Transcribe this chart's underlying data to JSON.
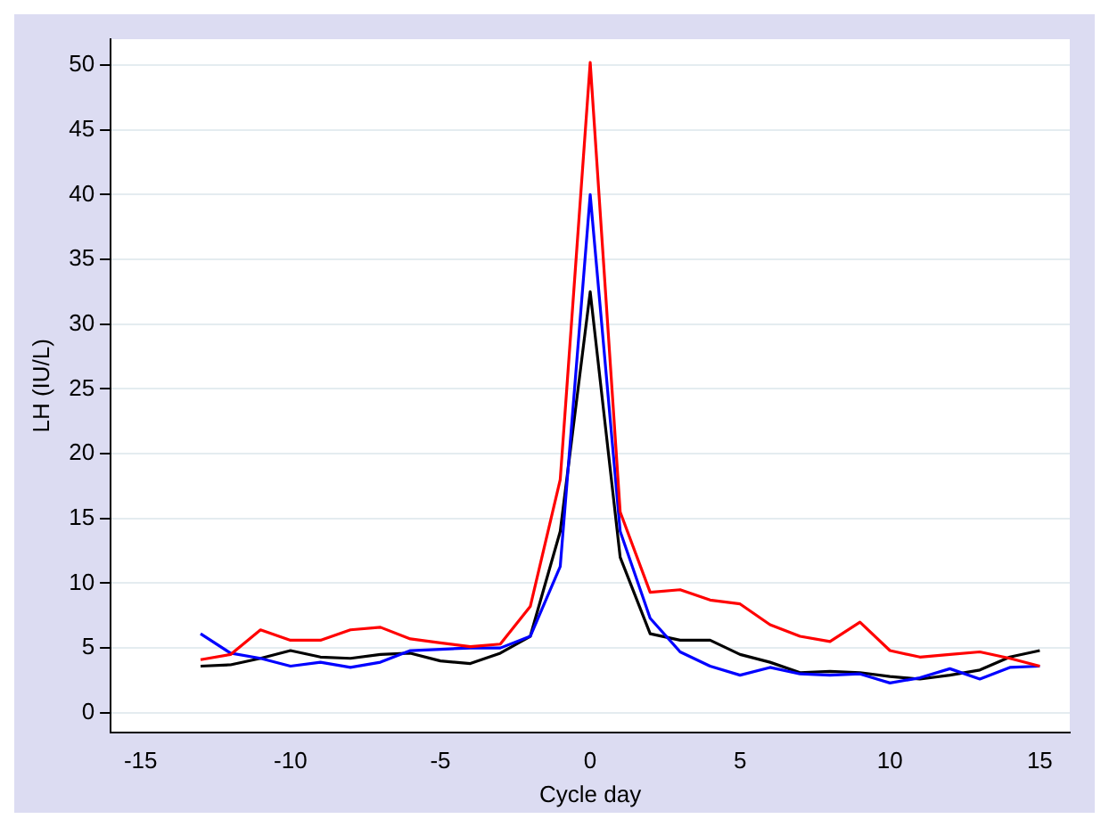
{
  "chart_data": {
    "type": "line",
    "xlabel": "Cycle day",
    "ylabel": "LH (IU/L)",
    "x": [
      -13,
      -12,
      -11,
      -10,
      -9,
      -8,
      -7,
      -6,
      -5,
      -4,
      -3,
      -2,
      -1,
      0,
      1,
      2,
      3,
      4,
      5,
      6,
      7,
      8,
      9,
      10,
      11,
      12,
      13,
      14,
      15
    ],
    "series": [
      {
        "color": "#ff0000",
        "values": [
          4.1,
          4.5,
          6.4,
          5.6,
          5.6,
          6.4,
          6.6,
          5.7,
          5.4,
          5.1,
          5.3,
          8.2,
          18,
          50.2,
          15.5,
          9.3,
          9.5,
          8.7,
          8.4,
          6.8,
          5.9,
          5.5,
          7,
          4.8,
          4.3,
          4.5,
          4.7,
          4.2,
          3.6
        ]
      },
      {
        "color": "#0000ff",
        "values": [
          6.1,
          4.6,
          4.2,
          3.6,
          3.9,
          3.5,
          3.9,
          4.8,
          4.9,
          5.0,
          5.0,
          5.9,
          11.3,
          40,
          14,
          7.3,
          4.7,
          3.6,
          2.9,
          3.5,
          3.0,
          2.9,
          3.0,
          2.3,
          2.7,
          3.4,
          2.6,
          3.5,
          3.6
        ]
      },
      {
        "color": "#000000",
        "values": [
          3.6,
          3.7,
          4.2,
          4.8,
          4.3,
          4.2,
          4.5,
          4.6,
          4.0,
          3.8,
          4.6,
          5.9,
          14,
          32.5,
          12,
          6.1,
          5.6,
          5.6,
          4.5,
          3.9,
          3.1,
          3.2,
          3.1,
          2.8,
          2.6,
          2.9,
          3.3,
          4.3,
          4.8
        ]
      }
    ],
    "xlim": [
      -16,
      16
    ],
    "xticks": [
      -15,
      -10,
      -5,
      0,
      5,
      10,
      15
    ],
    "ylim": [
      -1.5,
      52
    ],
    "yticks": [
      0,
      5,
      10,
      15,
      20,
      25,
      30,
      35,
      40,
      45,
      50
    ],
    "grid": "y",
    "legend": false,
    "marker": "none",
    "line_style": "solid"
  }
}
